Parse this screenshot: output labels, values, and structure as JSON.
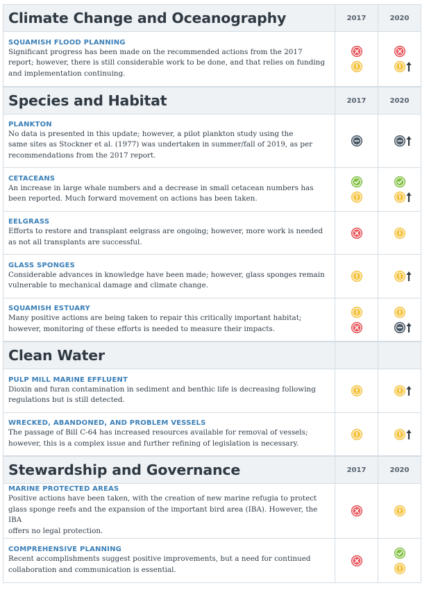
{
  "palette": {
    "red": "#e8545a",
    "yellow": "#f5c443",
    "green": "#83c145",
    "gray": "#4a5966",
    "blue_title": "#3a7fb7"
  },
  "sections": [
    {
      "title": "Climate Change and Oceanography",
      "years": [
        "2017",
        "2020"
      ],
      "items": [
        {
          "title": "SQUAMISH FLOOD PLANNING",
          "desc": "Significant progress has been made on the recommended actions from the 2017\nreport; however, there is still considerable work to be done, and that relies on funding\nand implementation continuing.",
          "status_2017": [
            "red",
            "yellow"
          ],
          "status_2020": [
            "red",
            "yellow"
          ],
          "up_2020": [
            false,
            true
          ]
        }
      ]
    },
    {
      "title": "Species and Habitat",
      "years": [
        "2017",
        "2020"
      ],
      "items": [
        {
          "title": "PLANKTON",
          "desc": "No data is presented in this update; however, a pilot plankton study using the\nsame sites as Stockner et al. (1977) was undertaken in summer/fall of 2019, as per\nrecommendations from the 2017 report.",
          "status_2017": [
            "gray"
          ],
          "status_2020": [
            "gray"
          ],
          "up_2020": [
            true
          ]
        },
        {
          "title": "CETACEANS",
          "desc": "An increase in large whale numbers and a decrease in small cetacean numbers has\nbeen reported. Much forward movement on actions has been taken.",
          "status_2017": [
            "green",
            "yellow"
          ],
          "status_2020": [
            "green",
            "yellow"
          ],
          "up_2020": [
            false,
            true
          ]
        },
        {
          "title": "EELGRASS",
          "desc": "Efforts to restore and transplant eelgrass are ongoing; however, more work is needed\nas not all transplants are successful.",
          "status_2017": [
            "red"
          ],
          "status_2020": [
            "yellow"
          ],
          "up_2020": [
            false
          ]
        },
        {
          "title": "GLASS SPONGES",
          "desc": "Considerable advances in knowledge have been made; however, glass sponges remain\nvulnerable to mechanical damage and climate change.",
          "status_2017": [
            "yellow"
          ],
          "status_2020": [
            "yellow"
          ],
          "up_2020": [
            true
          ]
        },
        {
          "title": "SQUAMISH ESTUARY",
          "desc": "Many positive actions are being taken to repair this critically important habitat;\nhowever, monitoring of these efforts is needed to measure their impacts.",
          "status_2017": [
            "yellow",
            "red"
          ],
          "status_2020": [
            "yellow",
            "gray"
          ],
          "up_2020": [
            false,
            true
          ]
        }
      ]
    },
    {
      "title": "Clean Water",
      "years": [
        "",
        ""
      ],
      "items": [
        {
          "title": "PULP MILL MARINE EFFLUENT",
          "desc": "Dioxin and furan contamination in sediment and benthic life is decreasing following\nregulations but is still detected.",
          "status_2017": [
            "yellow"
          ],
          "status_2020": [
            "yellow"
          ],
          "up_2020": [
            true
          ]
        },
        {
          "title": "WRECKED, ABANDONED, AND PROBLEM VESSELS",
          "desc": "The passage of Bill C-64 has increased resources available for removal of vessels;\nhowever, this is a complex issue and further refining of legislation is necessary.",
          "status_2017": [
            "yellow"
          ],
          "status_2020": [
            "yellow"
          ],
          "up_2020": [
            true
          ]
        }
      ]
    },
    {
      "title": "Stewardship and Governance",
      "years": [
        "2017",
        "2020"
      ],
      "items": [
        {
          "title": "MARINE PROTECTED AREAS",
          "desc": "Positive actions have been taken, with the creation of new marine refugia to protect\nglass sponge reefs and the expansion of the important bird area (IBA). However, the IBA\noffers no legal protection.",
          "status_2017": [
            "red"
          ],
          "status_2020": [
            "yellow"
          ],
          "up_2020": [
            false
          ]
        },
        {
          "title": "COMPREHENSIVE PLANNING",
          "desc": "Recent accomplishments suggest positive improvements, but a need for continued\ncollaboration and communication is essential.",
          "status_2017": [
            "red"
          ],
          "status_2020": [
            "green",
            "yellow"
          ],
          "up_2020": [
            false,
            false
          ]
        }
      ]
    }
  ]
}
